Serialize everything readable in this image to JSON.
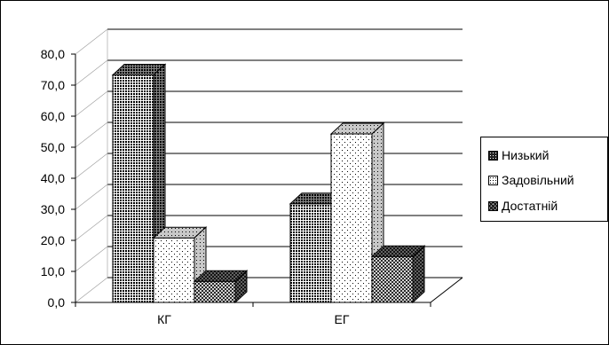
{
  "chart_data": {
    "type": "bar",
    "title": "",
    "xlabel": "",
    "ylabel": "",
    "categories": [
      "КГ",
      "ЕГ"
    ],
    "series": [
      {
        "name": "Низький",
        "values": [
          73.0,
          31.5
        ],
        "pattern": "dense-dots"
      },
      {
        "name": "Задовільний",
        "values": [
          20.5,
          54.0
        ],
        "pattern": "sparse-dots"
      },
      {
        "name": "Достатній",
        "values": [
          6.5,
          14.5
        ],
        "pattern": "crosshatch"
      }
    ],
    "ylim": [
      0,
      80
    ],
    "yticks": [
      "0,0",
      "10,0",
      "20,0",
      "30,0",
      "40,0",
      "50,0",
      "60,0",
      "70,0",
      "80,0"
    ],
    "grid": true,
    "legend_position": "right",
    "three_d": true
  }
}
